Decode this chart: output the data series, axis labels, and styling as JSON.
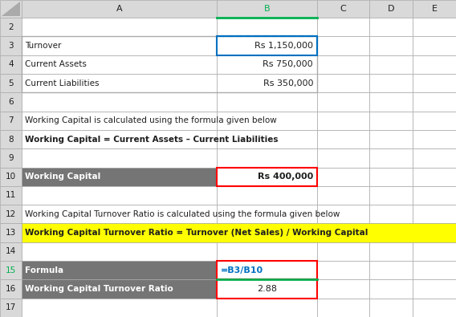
{
  "bg_color": "#E0E0E0",
  "white": "#FFFFFF",
  "gray_header": "#757575",
  "yellow": "#FFFF00",
  "red_border": "#FF0000",
  "blue_border": "#0070C0",
  "green_border": "#00B050",
  "dark_text": "#1F1F1F",
  "col_header_bg": "#D9D9D9",
  "row_num_bg": "#D9D9D9",
  "col_labels": [
    "",
    "A",
    "B",
    "C",
    "D",
    "E"
  ],
  "figsize": [
    5.68,
    3.95
  ],
  "dpi": 100,
  "row_data": [
    {
      "idx": 0,
      "label": "2",
      "a": "",
      "b": "",
      "a_style": {},
      "b_style": {}
    },
    {
      "idx": 1,
      "label": "3",
      "a": "Turnover",
      "b": "Rs 1,150,000",
      "a_style": {},
      "b_style": {
        "border": "blue",
        "align": "right"
      }
    },
    {
      "idx": 2,
      "label": "4",
      "a": "Current Assets",
      "b": "Rs 750,000",
      "a_style": {},
      "b_style": {
        "align": "right"
      }
    },
    {
      "idx": 3,
      "label": "5",
      "a": "Current Liabilities",
      "b": "Rs 350,000",
      "a_style": {},
      "b_style": {
        "align": "right"
      }
    },
    {
      "idx": 4,
      "label": "6",
      "a": "",
      "b": "",
      "a_style": {},
      "b_style": {}
    },
    {
      "idx": 5,
      "label": "7",
      "a": "Working Capital is calculated using the formula given below",
      "b": "",
      "a_style": {
        "span": true
      },
      "b_style": {}
    },
    {
      "idx": 6,
      "label": "8",
      "a": "Working Capital = Current Assets – Current Liabilities",
      "b": "",
      "a_style": {
        "span": true,
        "bold": true
      },
      "b_style": {}
    },
    {
      "idx": 7,
      "label": "9",
      "a": "",
      "b": "",
      "a_style": {},
      "b_style": {}
    },
    {
      "idx": 8,
      "label": "10",
      "a": "Working Capital",
      "b": "Rs 400,000",
      "a_style": {
        "gray_bg": true,
        "bold": true
      },
      "b_style": {
        "border": "red",
        "align": "right",
        "bold": true
      }
    },
    {
      "idx": 9,
      "label": "11",
      "a": "",
      "b": "",
      "a_style": {},
      "b_style": {}
    },
    {
      "idx": 10,
      "label": "12",
      "a": "Working Capital Turnover Ratio is calculated using the formula given below",
      "b": "",
      "a_style": {
        "span": true
      },
      "b_style": {}
    },
    {
      "idx": 11,
      "label": "13",
      "a": "Working Capital Turnover Ratio = Turnover (Net Sales) / Working Capital",
      "b": "",
      "a_style": {
        "span": true,
        "bold": true,
        "yellow_bg": true
      },
      "b_style": {}
    },
    {
      "idx": 12,
      "label": "14",
      "a": "",
      "b": "",
      "a_style": {},
      "b_style": {}
    },
    {
      "idx": 13,
      "label": "15",
      "a": "Formula",
      "b": "=B3/B10",
      "a_style": {
        "gray_bg": true,
        "bold": true
      },
      "b_style": {
        "border": "red_green",
        "align": "left",
        "blue_text": true,
        "bold": true
      }
    },
    {
      "idx": 14,
      "label": "16",
      "a": "Working Capital Turnover Ratio",
      "b": "2.88",
      "a_style": {
        "gray_bg": true,
        "bold": true
      },
      "b_style": {
        "border": "red",
        "align": "center"
      }
    },
    {
      "idx": 15,
      "label": "17",
      "a": "",
      "b": "",
      "a_style": {},
      "b_style": {}
    }
  ]
}
